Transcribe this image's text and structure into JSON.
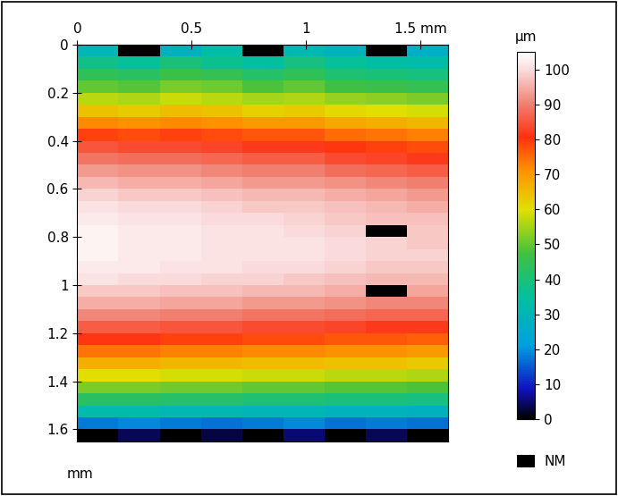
{
  "chart_data": {
    "type": "heatmap",
    "y_label": "mm",
    "xlim": [
      0,
      1.62
    ],
    "ylim": [
      1.65,
      0
    ],
    "xticks": [
      0,
      0.5,
      1,
      {
        "value": 1.5,
        "label": "1.5 mm"
      }
    ],
    "yticks": [
      0,
      0.2,
      0.4,
      0.6,
      0.8,
      1,
      1.2,
      1.4,
      1.6
    ],
    "x_edges": [
      0,
      0.18,
      0.36,
      0.54,
      0.72,
      0.9,
      1.08,
      1.26,
      1.44,
      1.62
    ],
    "y_edges": [
      0,
      0.05,
      0.1,
      0.15,
      0.2,
      0.25,
      0.3,
      0.35,
      0.4,
      0.45,
      0.5,
      0.55,
      0.6,
      0.65,
      0.7,
      0.75,
      0.8,
      0.85,
      0.9,
      0.95,
      1.0,
      1.05,
      1.1,
      1.15,
      1.2,
      1.25,
      1.3,
      1.35,
      1.4,
      1.45,
      1.5,
      1.55,
      1.6,
      1.65
    ],
    "cells": [
      [
        30,
        null,
        28,
        33,
        null,
        31,
        29,
        null,
        27
      ],
      [
        38,
        36,
        40,
        37,
        35,
        39,
        36,
        34,
        33
      ],
      [
        44,
        43,
        46,
        45,
        42,
        44,
        41,
        40,
        39
      ],
      [
        50,
        49,
        52,
        51,
        48,
        50,
        47,
        46,
        45
      ],
      [
        57,
        56,
        58,
        57,
        55,
        56,
        54,
        53,
        52
      ],
      [
        64,
        63,
        65,
        64,
        62,
        63,
        61,
        60,
        59
      ],
      [
        72,
        71,
        72,
        71,
        70,
        70,
        68,
        67,
        66
      ],
      [
        79,
        78,
        79,
        78,
        77,
        77,
        75,
        74,
        73
      ],
      [
        85,
        84,
        84,
        83,
        82,
        82,
        80,
        79,
        78
      ],
      [
        89,
        88,
        88,
        87,
        86,
        86,
        84,
        83,
        82
      ],
      [
        93,
        92,
        92,
        91,
        90,
        90,
        88,
        87,
        86
      ],
      [
        96,
        95,
        95,
        94,
        93,
        93,
        92,
        91,
        90
      ],
      [
        99,
        98,
        98,
        97,
        96,
        96,
        95,
        94,
        93
      ],
      [
        101,
        100,
        100,
        99,
        98,
        98,
        97,
        96,
        95
      ],
      [
        102,
        101,
        101,
        100,
        100,
        99,
        98,
        97,
        97
      ],
      [
        103,
        102,
        102,
        101,
        101,
        100,
        99,
        null,
        98
      ],
      [
        103,
        102,
        102,
        101,
        101,
        101,
        100,
        99,
        98
      ],
      [
        103,
        102,
        102,
        101,
        101,
        101,
        100,
        99,
        99
      ],
      [
        102,
        102,
        101,
        101,
        100,
        100,
        99,
        98,
        98
      ],
      [
        101,
        100,
        100,
        99,
        99,
        98,
        97,
        96,
        96
      ],
      [
        98,
        98,
        97,
        97,
        96,
        96,
        95,
        null,
        94
      ],
      [
        95,
        95,
        94,
        94,
        93,
        93,
        92,
        91,
        91
      ],
      [
        91,
        91,
        90,
        90,
        89,
        89,
        88,
        87,
        87
      ],
      [
        86,
        86,
        85,
        85,
        84,
        84,
        83,
        82,
        82
      ],
      [
        80,
        80,
        79,
        79,
        78,
        78,
        77,
        77,
        76
      ],
      [
        74,
        74,
        73,
        73,
        72,
        72,
        71,
        71,
        70
      ],
      [
        67,
        67,
        66,
        66,
        65,
        65,
        64,
        64,
        63
      ],
      [
        60,
        60,
        59,
        59,
        58,
        58,
        57,
        57,
        56
      ],
      [
        52,
        52,
        51,
        51,
        50,
        50,
        49,
        49,
        48
      ],
      [
        43,
        43,
        42,
        42,
        41,
        41,
        40,
        40,
        39
      ],
      [
        32,
        32,
        31,
        31,
        30,
        30,
        29,
        29,
        28
      ],
      [
        18,
        19,
        18,
        17,
        18,
        19,
        17,
        18,
        17
      ],
      [
        null,
        4,
        null,
        3,
        null,
        5,
        null,
        4,
        null
      ]
    ],
    "colorbar": {
      "label": "µm",
      "range": [
        0,
        105
      ],
      "ticks": [
        0,
        10,
        20,
        30,
        40,
        50,
        60,
        70,
        80,
        90,
        100
      ]
    },
    "missing_label": "NM"
  }
}
